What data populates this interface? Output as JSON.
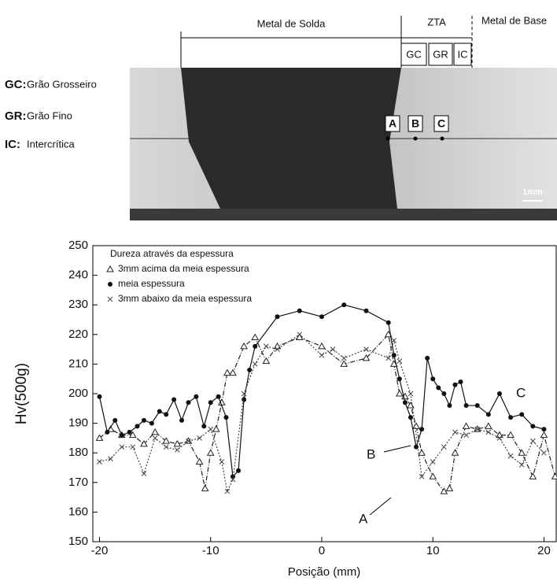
{
  "micrograph": {
    "regions": [
      "Metal de Solda",
      "ZTA",
      "Metal de Base"
    ],
    "zones": [
      "GC",
      "GR",
      "IC"
    ],
    "points": [
      "A",
      "B",
      "C"
    ],
    "scale": "1mm",
    "key": [
      {
        "code": "GC:",
        "text": "Grão Grosseiro"
      },
      {
        "code": "GR:",
        "text": "Grão Fino"
      },
      {
        "code": "IC:",
        "text": "Intercrítica"
      }
    ]
  },
  "chart_data": {
    "type": "line",
    "y_label": "Hv(500g)",
    "x_label": "Posição (mm)",
    "legend_title": "Dureza através da espessura",
    "legend_position": "upper left",
    "xlim": [
      -20.6,
      21.1
    ],
    "ylim": [
      150,
      250
    ],
    "xticks": [
      -20,
      -10,
      0,
      10,
      20
    ],
    "yticks": [
      150,
      160,
      170,
      180,
      190,
      200,
      210,
      220,
      230,
      240,
      250
    ],
    "annotations": [
      "A",
      "B",
      "C"
    ],
    "series": [
      {
        "name": "3mm acima da meia espessura",
        "color": "#222222",
        "marker": "triangle",
        "line_style": "dashdot",
        "x": [
          -20,
          -19,
          -18,
          -17,
          -16,
          -15,
          -14,
          -13,
          -12,
          -11,
          -10.5,
          -10,
          -9.5,
          -9,
          -8.5,
          -8,
          -7,
          -6,
          -5,
          -4,
          -2,
          0,
          2,
          4,
          6,
          6.5,
          7,
          7.5,
          8,
          8.5,
          9,
          10,
          11,
          11.5,
          12,
          13,
          14,
          15,
          16,
          17,
          18,
          19,
          20,
          21
        ],
        "values": [
          185,
          188,
          186,
          186,
          183,
          187,
          184,
          183,
          184,
          177,
          168,
          180,
          188,
          197,
          207,
          207,
          216,
          219,
          211,
          216,
          219,
          216,
          210,
          212,
          220,
          210,
          200,
          199,
          196,
          189,
          180,
          172,
          167,
          168,
          180,
          189,
          188,
          189,
          186,
          186,
          180,
          172,
          186,
          172
        ]
      },
      {
        "name": "meia espessura",
        "color": "#111111",
        "marker": "circle",
        "line_style": "solid",
        "x": [
          -20,
          -19.3,
          -18.6,
          -18,
          -17.3,
          -16.6,
          -16,
          -15.3,
          -14.6,
          -14,
          -13.3,
          -12.6,
          -12,
          -11.3,
          -10.6,
          -10,
          -9.3,
          -8.6,
          -8,
          -7.5,
          -7,
          -6.5,
          -6,
          -4,
          -2,
          0,
          2,
          4,
          6,
          6.5,
          7,
          7.5,
          8,
          8.5,
          9,
          9.5,
          10,
          10.5,
          11,
          11.5,
          12,
          12.5,
          13,
          14,
          15,
          16,
          17,
          18,
          19,
          20
        ],
        "values": [
          199,
          187,
          191,
          186,
          187,
          189,
          191,
          190,
          194,
          193,
          198,
          191,
          197,
          199,
          189,
          197,
          199,
          192,
          172,
          174,
          198,
          208,
          216,
          226,
          228,
          226,
          230,
          228,
          224,
          213,
          205,
          197,
          192,
          182,
          188,
          212,
          205,
          202,
          200,
          196,
          203,
          204,
          196,
          196,
          193,
          200,
          192,
          193,
          189,
          188
        ]
      },
      {
        "name": "3mm abaixo da meia espessura",
        "color": "#444444",
        "marker": "cross",
        "line_style": "dotted",
        "x": [
          -20,
          -19,
          -18,
          -17,
          -16,
          -15,
          -14,
          -13,
          -12,
          -11,
          -10,
          -9,
          -8.5,
          -8,
          -7,
          -6,
          -5,
          -4,
          -2,
          0,
          1,
          2,
          4,
          6,
          6.5,
          7,
          8,
          9,
          10,
          11,
          12,
          13,
          14,
          15,
          16,
          17,
          18,
          19,
          20
        ],
        "values": [
          177,
          178,
          182,
          182,
          173,
          185,
          182,
          181,
          184,
          185,
          188,
          177,
          167,
          171,
          200,
          210,
          216,
          215,
          220,
          213,
          215,
          212,
          215,
          212,
          218,
          211,
          200,
          172,
          177,
          182,
          187,
          186,
          188,
          187,
          185,
          179,
          176,
          184,
          180
        ]
      }
    ]
  }
}
